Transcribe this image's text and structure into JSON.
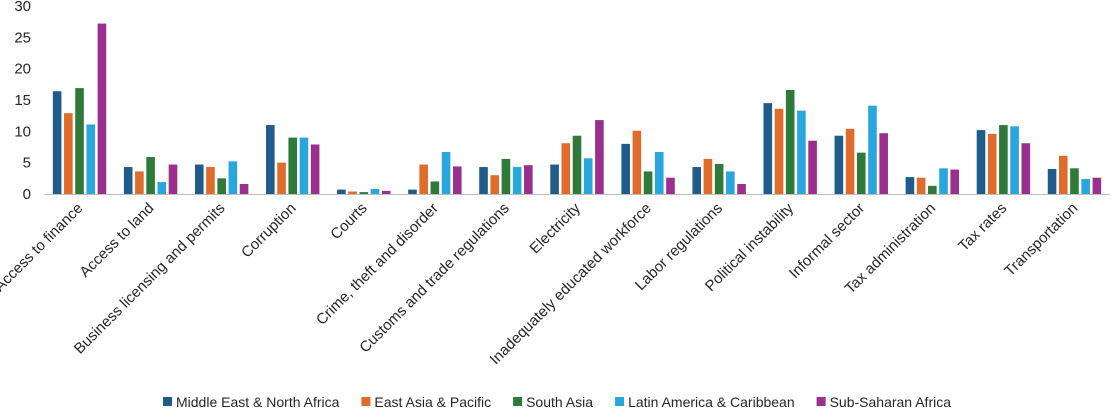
{
  "chart_data": {
    "type": "bar",
    "title": "",
    "xlabel": "",
    "ylabel": "",
    "ylim": [
      0,
      30
    ],
    "yticks": [
      0,
      5,
      10,
      15,
      20,
      25,
      30
    ],
    "grid": false,
    "legend_position": "bottom",
    "categories": [
      "Access to finance",
      "Access to land",
      "Business licensing and permits",
      "Corruption",
      "Courts",
      "Crime, theft and disorder",
      "Customs and trade regulations",
      "Electricity",
      "Inadequately educated workforce",
      "Labor regulations",
      "Political instability",
      "Informal sector",
      "Tax administration",
      "Tax rates",
      "Transportation"
    ],
    "series": [
      {
        "name": "Middle East & North Africa",
        "color": "#1f5c8b",
        "values": [
          16.4,
          4.3,
          4.7,
          11.0,
          0.7,
          0.7,
          4.3,
          4.7,
          8.0,
          4.3,
          14.5,
          9.3,
          2.7,
          10.2,
          4.0
        ]
      },
      {
        "name": "East Asia & Pacific",
        "color": "#e06c2c",
        "values": [
          12.9,
          3.6,
          4.3,
          5.0,
          0.4,
          4.7,
          3.0,
          8.1,
          10.1,
          5.6,
          13.6,
          10.4,
          2.6,
          9.6,
          6.1
        ]
      },
      {
        "name": "South Asia",
        "color": "#2f7a3a",
        "values": [
          16.9,
          5.9,
          2.5,
          9.0,
          0.3,
          2.0,
          5.6,
          9.3,
          3.6,
          4.8,
          16.6,
          6.6,
          1.3,
          11.0,
          4.1
        ]
      },
      {
        "name": "Latin America & Caribbean",
        "color": "#2aa6df",
        "values": [
          11.1,
          1.9,
          5.2,
          9.0,
          0.8,
          6.7,
          4.3,
          5.7,
          6.7,
          3.6,
          13.3,
          14.1,
          4.1,
          10.8,
          2.4
        ]
      },
      {
        "name": "Sub-Saharan Africa",
        "color": "#9b2f8e",
        "values": [
          27.2,
          4.7,
          1.6,
          7.9,
          0.5,
          4.4,
          4.6,
          11.8,
          2.6,
          1.6,
          8.5,
          9.7,
          3.9,
          8.1,
          2.6
        ]
      }
    ]
  }
}
